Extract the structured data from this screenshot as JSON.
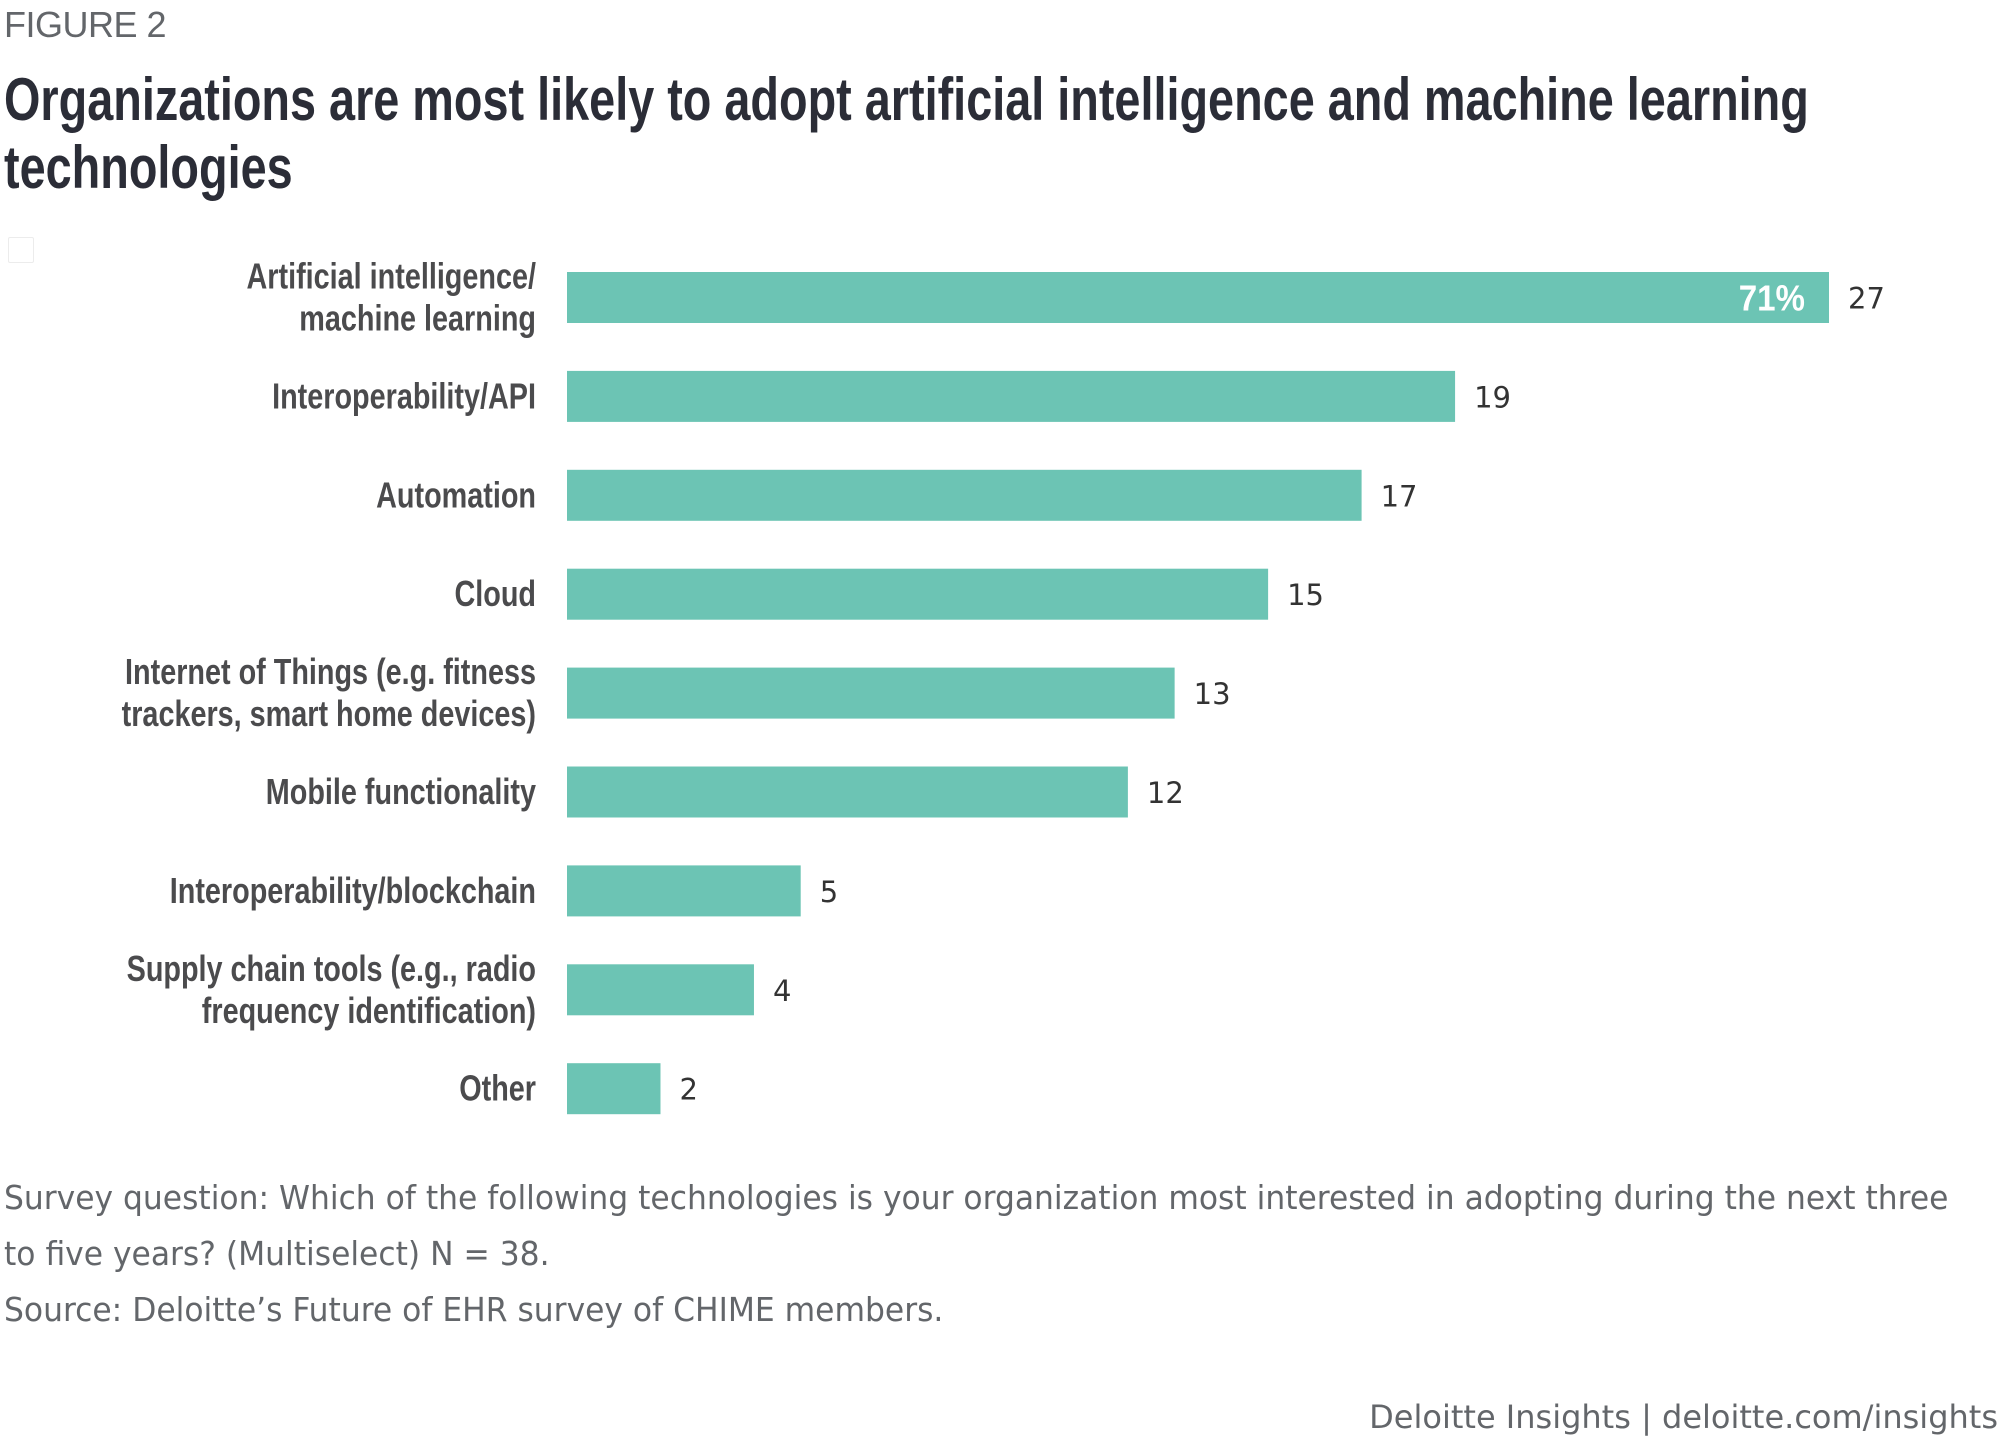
{
  "figure_label": "FIGURE 2",
  "title": "Organizations are most likely to adopt artificial intelligence and machine learning technologies",
  "chart_data": {
    "type": "bar",
    "orientation": "horizontal",
    "title": "Organizations are most likely to adopt artificial intelligence and machine learning technologies",
    "xlabel": "",
    "ylabel": "",
    "xlim": [
      0,
      27
    ],
    "grid": false,
    "legend": "none",
    "bar_color": "#6cc4b4",
    "categories": [
      [
        "Artificial intelligence/",
        "machine learning"
      ],
      [
        "Interoperability/API"
      ],
      [
        "Automation"
      ],
      [
        "Cloud"
      ],
      [
        "Internet of Things (e.g. fitness",
        "trackers, smart home devices)"
      ],
      [
        "Mobile functionality"
      ],
      [
        "Interoperability/blockchain"
      ],
      [
        "Supply chain tools (e.g., radio",
        "frequency identification)"
      ],
      [
        "Other"
      ]
    ],
    "values": [
      27,
      19,
      17,
      15,
      13,
      12,
      5,
      4,
      2
    ],
    "value_labels": [
      "27",
      "19",
      "17",
      "15",
      "13",
      "12",
      "5",
      "4",
      "2"
    ],
    "annotations": [
      {
        "bar_index": 0,
        "text": "71%",
        "position": "inside-end"
      }
    ]
  },
  "footnotes": {
    "survey_question": "Survey question: Which of the following technologies is your organization most interested in adopting during the next three",
    "survey_question_cont": "to five years? (Multiselect) N = 38.",
    "source": "Source: Deloitte’s Future of EHR survey of CHIME members."
  },
  "footer": "Deloitte Insights | deloitte.com/insights"
}
